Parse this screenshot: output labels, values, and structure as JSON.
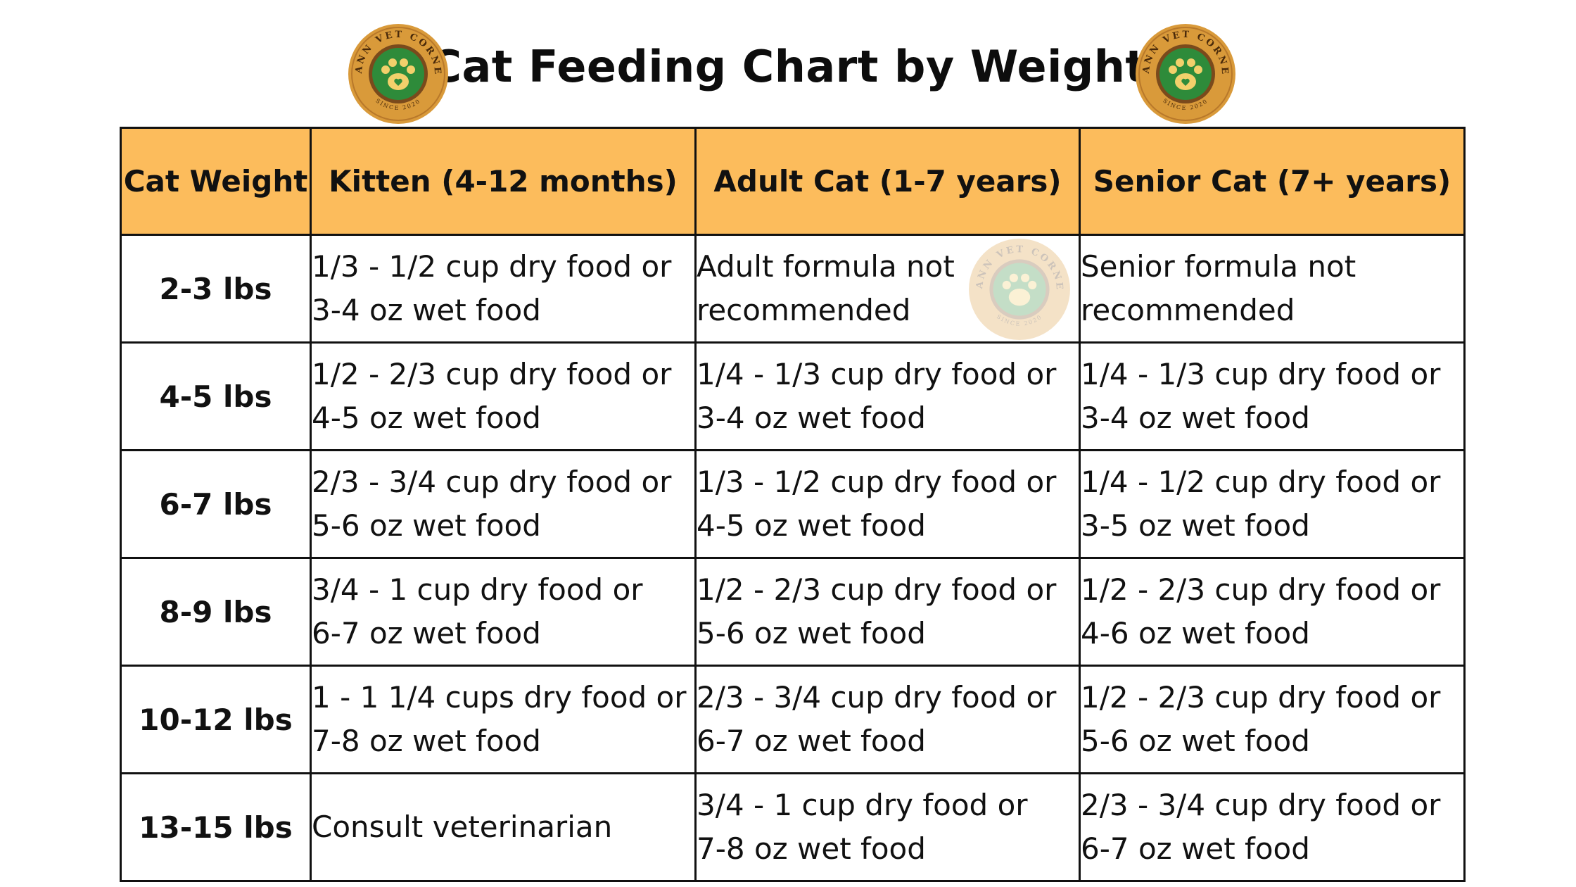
{
  "title": "Cat Feeding Chart by Weight",
  "logo": {
    "ring_text": "MANN VET CORNER",
    "since_text": "SINCE 2020"
  },
  "colors": {
    "header_bg": "#fcbc5c",
    "logo_gold": "#d99a3a",
    "logo_green": "#2e8b3a"
  },
  "table": {
    "headers": [
      "Cat Weight",
      "Kitten (4-12 months)",
      "Adult Cat (1-7 years)",
      "Senior Cat (7+ years)"
    ],
    "rows": [
      {
        "weight": "2-3 lbs",
        "kitten": [
          "1/3 - 1/2 cup dry food or",
          "3-4 oz wet food"
        ],
        "adult": [
          "Adult formula not",
          "recommended"
        ],
        "senior": [
          "Senior formula not",
          "recommended"
        ]
      },
      {
        "weight": "4-5 lbs",
        "kitten": [
          "1/2 - 2/3 cup dry food or",
          "4-5 oz wet food"
        ],
        "adult": [
          "1/4 - 1/3 cup dry food or",
          "3-4 oz wet food"
        ],
        "senior": [
          "1/4 - 1/3 cup dry food or",
          "3-4 oz wet food"
        ]
      },
      {
        "weight": "6-7 lbs",
        "kitten": [
          "2/3 - 3/4 cup dry food or",
          "5-6 oz wet food"
        ],
        "adult": [
          "1/3 - 1/2 cup dry food or",
          "4-5 oz wet food"
        ],
        "senior": [
          "1/4 - 1/2 cup dry food or",
          "3-5 oz wet food"
        ]
      },
      {
        "weight": "8-9 lbs",
        "kitten": [
          "3/4 - 1 cup dry food or",
          "6-7 oz wet food"
        ],
        "adult": [
          "1/2 - 2/3 cup dry food or",
          "5-6 oz wet food"
        ],
        "senior": [
          "1/2 - 2/3 cup dry food or",
          "4-6 oz wet food"
        ]
      },
      {
        "weight": "10-12 lbs",
        "kitten": [
          "1 - 1 1/4 cups dry food or",
          "7-8 oz wet food"
        ],
        "adult": [
          "2/3 - 3/4 cup dry food or",
          "6-7 oz wet food"
        ],
        "senior": [
          "1/2 - 2/3 cup dry food or",
          "5-6 oz wet food"
        ]
      },
      {
        "weight": "13-15 lbs",
        "kitten": [
          "Consult veterinarian"
        ],
        "adult": [
          "3/4 - 1 cup dry food or",
          "7-8 oz wet food"
        ],
        "senior": [
          "2/3 - 3/4 cup dry food or",
          "6-7 oz wet food"
        ]
      }
    ]
  }
}
